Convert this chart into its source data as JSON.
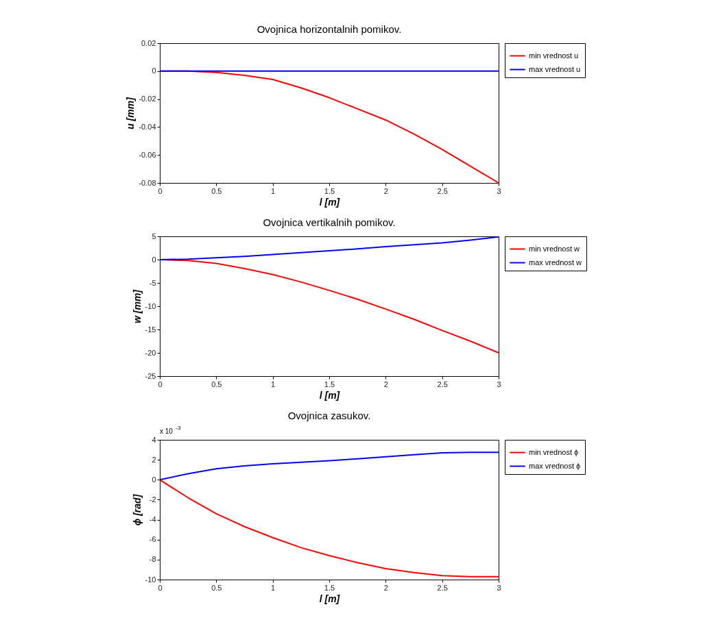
{
  "chart_data": [
    {
      "type": "line",
      "title": "Ovojnica horizontalnih pomikov.",
      "xlabel": "l [m]",
      "ylabel": "u [mm]",
      "legend": "top right",
      "x": [
        0,
        0.25,
        0.5,
        0.75,
        1,
        1.25,
        1.5,
        1.75,
        2,
        2.25,
        2.5,
        2.75,
        3
      ],
      "xlim": [
        0,
        3
      ],
      "xticks": [
        0,
        0.5,
        1,
        1.5,
        2,
        2.5,
        3
      ],
      "ylim": [
        -0.08,
        0.02
      ],
      "yticks": [
        -0.08,
        -0.06,
        -0.04,
        -0.02,
        0,
        0.02
      ],
      "series": [
        {
          "name": "min vrednost u",
          "color": "#ff0000",
          "values": [
            0,
            0,
            -0.001,
            -0.003,
            -0.006,
            -0.012,
            -0.019,
            -0.027,
            -0.035,
            -0.045,
            -0.056,
            -0.068,
            -0.08
          ]
        },
        {
          "name": "max vrednost u",
          "color": "#0000ff",
          "values": [
            0,
            0,
            0,
            0,
            0,
            0,
            0,
            0,
            0,
            0,
            0,
            0,
            0
          ]
        }
      ]
    },
    {
      "type": "line",
      "title": "Ovojnica vertikalnih pomikov.",
      "xlabel": "l [m]",
      "ylabel": "w [mm]",
      "legend": "top right",
      "x": [
        0,
        0.25,
        0.5,
        0.75,
        1,
        1.25,
        1.5,
        1.75,
        2,
        2.25,
        2.5,
        2.75,
        3
      ],
      "xlim": [
        0,
        3
      ],
      "xticks": [
        0,
        0.5,
        1,
        1.5,
        2,
        2.5,
        3
      ],
      "ylim": [
        -25,
        5
      ],
      "yticks": [
        -25,
        -20,
        -15,
        -10,
        -5,
        0,
        5
      ],
      "series": [
        {
          "name": "min vrednost w",
          "color": "#ff0000",
          "values": [
            0,
            -0.2,
            -0.8,
            -1.9,
            -3.2,
            -4.8,
            -6.6,
            -8.5,
            -10.6,
            -12.8,
            -15.2,
            -17.5,
            -20
          ]
        },
        {
          "name": "max vrednost w",
          "color": "#0000ff",
          "values": [
            0,
            0.1,
            0.4,
            0.7,
            1.1,
            1.5,
            1.9,
            2.3,
            2.8,
            3.2,
            3.6,
            4.2,
            4.9
          ]
        }
      ]
    },
    {
      "type": "line",
      "title": "Ovojnica zasukov.",
      "xlabel": "l [m]",
      "ylabel": "ϕ [rad]",
      "legend": "top right",
      "annotations": [
        "x 10$^{-3}$"
      ],
      "x": [
        0,
        0.25,
        0.5,
        0.75,
        1,
        1.25,
        1.5,
        1.75,
        2,
        2.25,
        2.5,
        2.75,
        3
      ],
      "xlim": [
        0,
        3
      ],
      "xticks": [
        0,
        0.5,
        1,
        1.5,
        2,
        2.5,
        3
      ],
      "ylim": [
        -10,
        4
      ],
      "yticks": [
        -10,
        -8,
        -6,
        -4,
        -2,
        0,
        2,
        4
      ],
      "series": [
        {
          "name": "min vrednost ϕ",
          "color": "#ff0000",
          "values": [
            0,
            -1.8,
            -3.4,
            -4.7,
            -5.8,
            -6.8,
            -7.6,
            -8.3,
            -8.9,
            -9.3,
            -9.6,
            -9.7,
            -9.7
          ]
        },
        {
          "name": "max vrednost ϕ",
          "color": "#0000ff",
          "values": [
            0,
            0.6,
            1.1,
            1.4,
            1.6,
            1.75,
            1.9,
            2.1,
            2.3,
            2.5,
            2.7,
            2.75,
            2.75
          ]
        }
      ]
    }
  ]
}
